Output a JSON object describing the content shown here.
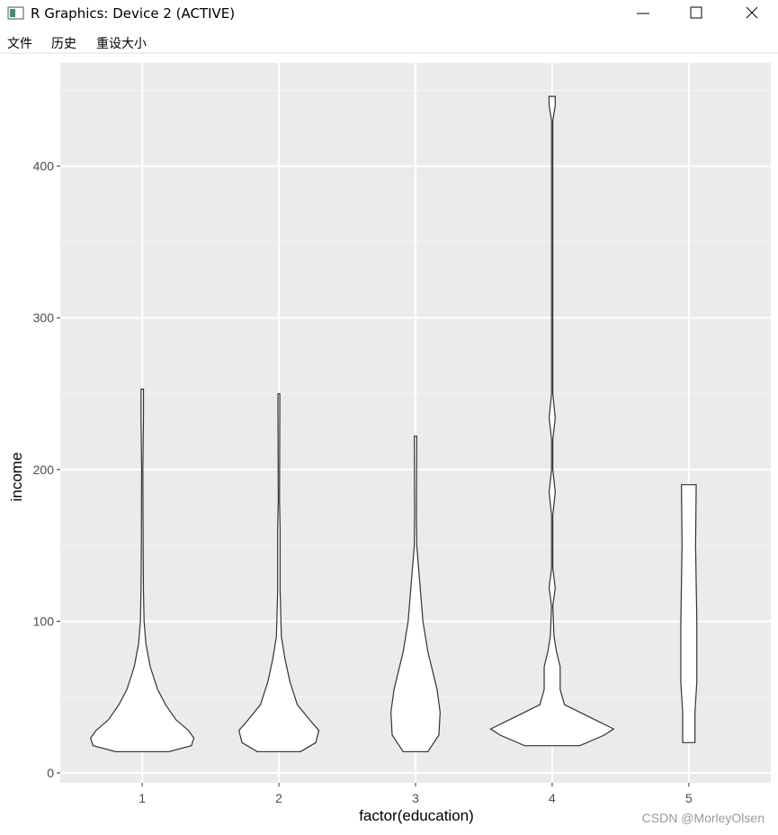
{
  "window": {
    "title": "R Graphics: Device 2 (ACTIVE)",
    "menu": [
      "文件",
      "历史",
      "重设大小"
    ]
  },
  "watermark": "CSDN @MorleyOlsen",
  "chart_data": {
    "type": "violin",
    "x_label": "factor(education)",
    "y_label": "income",
    "categories": [
      "1",
      "2",
      "3",
      "4",
      "5"
    ],
    "ylim": [
      -6.5,
      468
    ],
    "yticks": [
      0,
      100,
      200,
      300,
      400
    ],
    "minor_yticks": [
      50,
      150,
      250,
      350,
      450
    ],
    "grid": true,
    "color": "#ffffff",
    "edge_color": "#333333",
    "violins": [
      {
        "income": [
          14,
          18,
          23,
          28,
          35,
          45,
          55,
          70,
          85,
          100,
          120,
          145,
          200,
          235,
          253
        ],
        "density": [
          0.43,
          0.8,
          0.84,
          0.75,
          0.55,
          0.38,
          0.25,
          0.13,
          0.06,
          0.03,
          0.02,
          0.015,
          0.01,
          0.02,
          0.02
        ]
      },
      {
        "income": [
          14,
          20,
          28,
          35,
          45,
          60,
          75,
          90,
          120,
          160,
          180,
          240,
          250
        ],
        "density": [
          0.35,
          0.6,
          0.65,
          0.5,
          0.3,
          0.18,
          0.1,
          0.04,
          0.02,
          0.02,
          0.01,
          0.015,
          0.015
        ]
      },
      {
        "income": [
          14,
          25,
          40,
          55,
          80,
          100,
          130,
          150,
          170,
          222
        ],
        "density": [
          0.2,
          0.38,
          0.4,
          0.35,
          0.2,
          0.12,
          0.06,
          0.02,
          0.015,
          0.02
        ]
      },
      {
        "income": [
          18,
          25,
          29,
          35,
          45,
          55,
          70,
          80,
          90,
          110,
          122,
          135,
          170,
          185,
          200,
          220,
          234,
          250,
          430,
          440,
          446
        ],
        "density": [
          0.45,
          0.85,
          1.0,
          0.7,
          0.2,
          0.13,
          0.13,
          0.07,
          0.03,
          0.01,
          0.05,
          0.01,
          0.01,
          0.05,
          0.01,
          0.01,
          0.05,
          0.01,
          0.01,
          0.05,
          0.05
        ]
      },
      {
        "income": [
          20,
          40,
          60,
          100,
          150,
          190
        ],
        "density": [
          0.1,
          0.1,
          0.13,
          0.13,
          0.11,
          0.12
        ]
      }
    ]
  }
}
